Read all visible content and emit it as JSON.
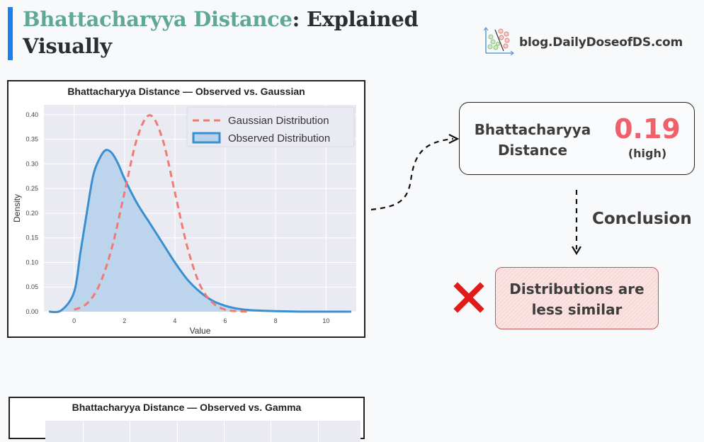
{
  "header": {
    "title_accent": "Bhattacharyya Distance",
    "title_rest": ": Explained",
    "title_line2": "Visually",
    "accent_color": "#5fa895",
    "bar_color": "#1a7ff0"
  },
  "logo": {
    "icon": "scatter-classifier-icon",
    "text": "blog.DailyDoseofDS.com"
  },
  "chart_data": [
    {
      "type": "line",
      "title": "Bhattacharyya Distance — Observed  vs. Gaussian",
      "xlabel": "Value",
      "ylabel": "Density",
      "xlim": [
        -1.2,
        11.2
      ],
      "ylim": [
        0,
        0.42
      ],
      "xticks": [
        0,
        2,
        4,
        6,
        8,
        10
      ],
      "yticks": [
        "0.00",
        "0.05",
        "0.10",
        "0.15",
        "0.20",
        "0.25",
        "0.30",
        "0.35",
        "0.40"
      ],
      "grid": true,
      "legend_position": "upper right",
      "series": [
        {
          "name": "Gaussian Distribution",
          "style": "dashed",
          "color": "#f07b72",
          "x": [
            0,
            0.5,
            1,
            1.5,
            2,
            2.5,
            3,
            3.5,
            4,
            4.5,
            5,
            5.5,
            6,
            6.5,
            7
          ],
          "y": [
            0.004,
            0.016,
            0.054,
            0.13,
            0.242,
            0.352,
            0.399,
            0.352,
            0.242,
            0.13,
            0.054,
            0.018,
            0.004,
            0.001,
            0.0
          ]
        },
        {
          "name": "Observed Distribution",
          "style": "filled",
          "color": "#3a8fd0",
          "fill": "#b8d2ec",
          "x": [
            -1,
            -0.5,
            0,
            0.25,
            0.5,
            0.75,
            1,
            1.25,
            1.5,
            1.75,
            2,
            2.5,
            3,
            3.5,
            4,
            4.5,
            5,
            5.5,
            6,
            6.5,
            7,
            8,
            9,
            10,
            11
          ],
          "y": [
            0.0,
            0.003,
            0.04,
            0.12,
            0.2,
            0.275,
            0.31,
            0.328,
            0.322,
            0.3,
            0.27,
            0.22,
            0.18,
            0.14,
            0.1,
            0.065,
            0.04,
            0.022,
            0.012,
            0.006,
            0.003,
            0.001,
            0.0,
            0.0,
            0.0
          ]
        }
      ]
    },
    {
      "type": "line",
      "title": "Bhattacharyya Distance — Observed  vs. Gamma",
      "partial": true
    }
  ],
  "result": {
    "label_line1": "Bhattacharyya",
    "label_line2": "Distance",
    "value": "0.19",
    "qualifier": "(high)",
    "value_color": "#f0606a"
  },
  "flow": {
    "conclusion_label": "Conclusion"
  },
  "verdict": {
    "icon": "red-cross-icon",
    "line1": "Distributions are",
    "line2": "less similar"
  }
}
